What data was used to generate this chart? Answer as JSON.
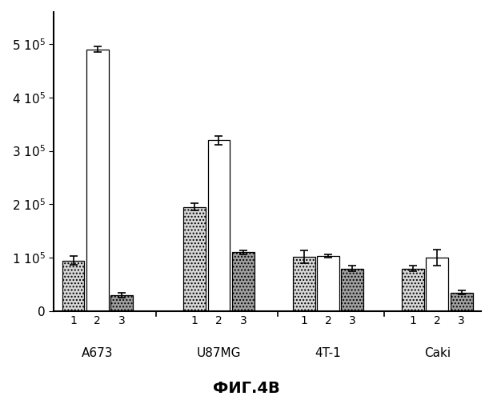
{
  "groups": [
    "A673",
    "U87MG",
    "4T-1",
    "Caki"
  ],
  "bar_labels": [
    "1",
    "2",
    "3"
  ],
  "values": [
    [
      95000,
      490000,
      30000
    ],
    [
      195000,
      320000,
      110000
    ],
    [
      102000,
      103000,
      80000
    ],
    [
      80000,
      100000,
      35000
    ]
  ],
  "errors": [
    [
      8000,
      5000,
      4000
    ],
    [
      7000,
      8000,
      4000
    ],
    [
      12000,
      3000,
      5000
    ],
    [
      5000,
      15000,
      4000
    ]
  ],
  "bar_colors": [
    "#d8d8d8",
    "#ffffff",
    "#a0a0a0"
  ],
  "bar_hatches": [
    "....",
    "",
    "...."
  ],
  "bar_hatch_colors": [
    "#555555",
    "#000000",
    "#222222"
  ],
  "ylim": [
    0,
    560000
  ],
  "yticks": [
    0,
    100000,
    200000,
    300000,
    400000,
    500000
  ],
  "ytick_labels": [
    "0",
    "1 10^5",
    "2 10^5",
    "3 10^5",
    "4 10^5",
    "5 10^5"
  ],
  "title": "ФИГ.4В",
  "background_color": "#ffffff",
  "edge_color": "#000000"
}
